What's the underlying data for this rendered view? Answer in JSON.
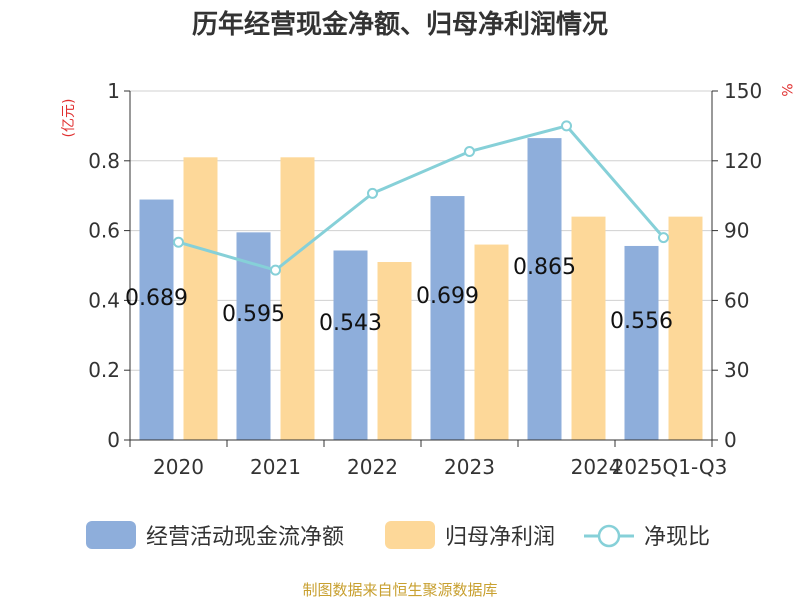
{
  "chart_data": {
    "type": "bar",
    "title": "历年经营现金净额、归母净利润情况",
    "categories": [
      "2020",
      "2021",
      "2022",
      "2023",
      "2024",
      "2025Q1-Q3"
    ],
    "series": [
      {
        "name": "经营活动现金流净额",
        "kind": "bar",
        "axis": "left",
        "color": "#8eaedb",
        "values": [
          0.689,
          0.595,
          0.543,
          0.699,
          0.865,
          0.556
        ],
        "labels": [
          "0.689",
          "0.595",
          "0.543",
          "0.699",
          "0.865",
          "0.556"
        ]
      },
      {
        "name": "归母净利润",
        "kind": "bar",
        "axis": "left",
        "color": "#fdd899",
        "values": [
          0.81,
          0.81,
          0.51,
          0.56,
          0.64,
          0.64
        ]
      },
      {
        "name": "净现比",
        "kind": "line",
        "axis": "right",
        "color": "#86d0d8",
        "values": [
          85,
          73,
          106,
          124,
          135,
          87
        ]
      }
    ],
    "ylabel_left": "(亿元)",
    "ylabel_right": "%",
    "ylim_left": [
      0,
      1
    ],
    "ylim_right": [
      0,
      150
    ],
    "yticks_left": [
      "0",
      "0.2",
      "0.4",
      "0.6",
      "0.8",
      "1"
    ],
    "yticks_right": [
      "0",
      "30",
      "60",
      "90",
      "120",
      "150"
    ],
    "grid": true,
    "legend": "bottom"
  },
  "source_text": "制图数据来自恒生聚源数据库"
}
